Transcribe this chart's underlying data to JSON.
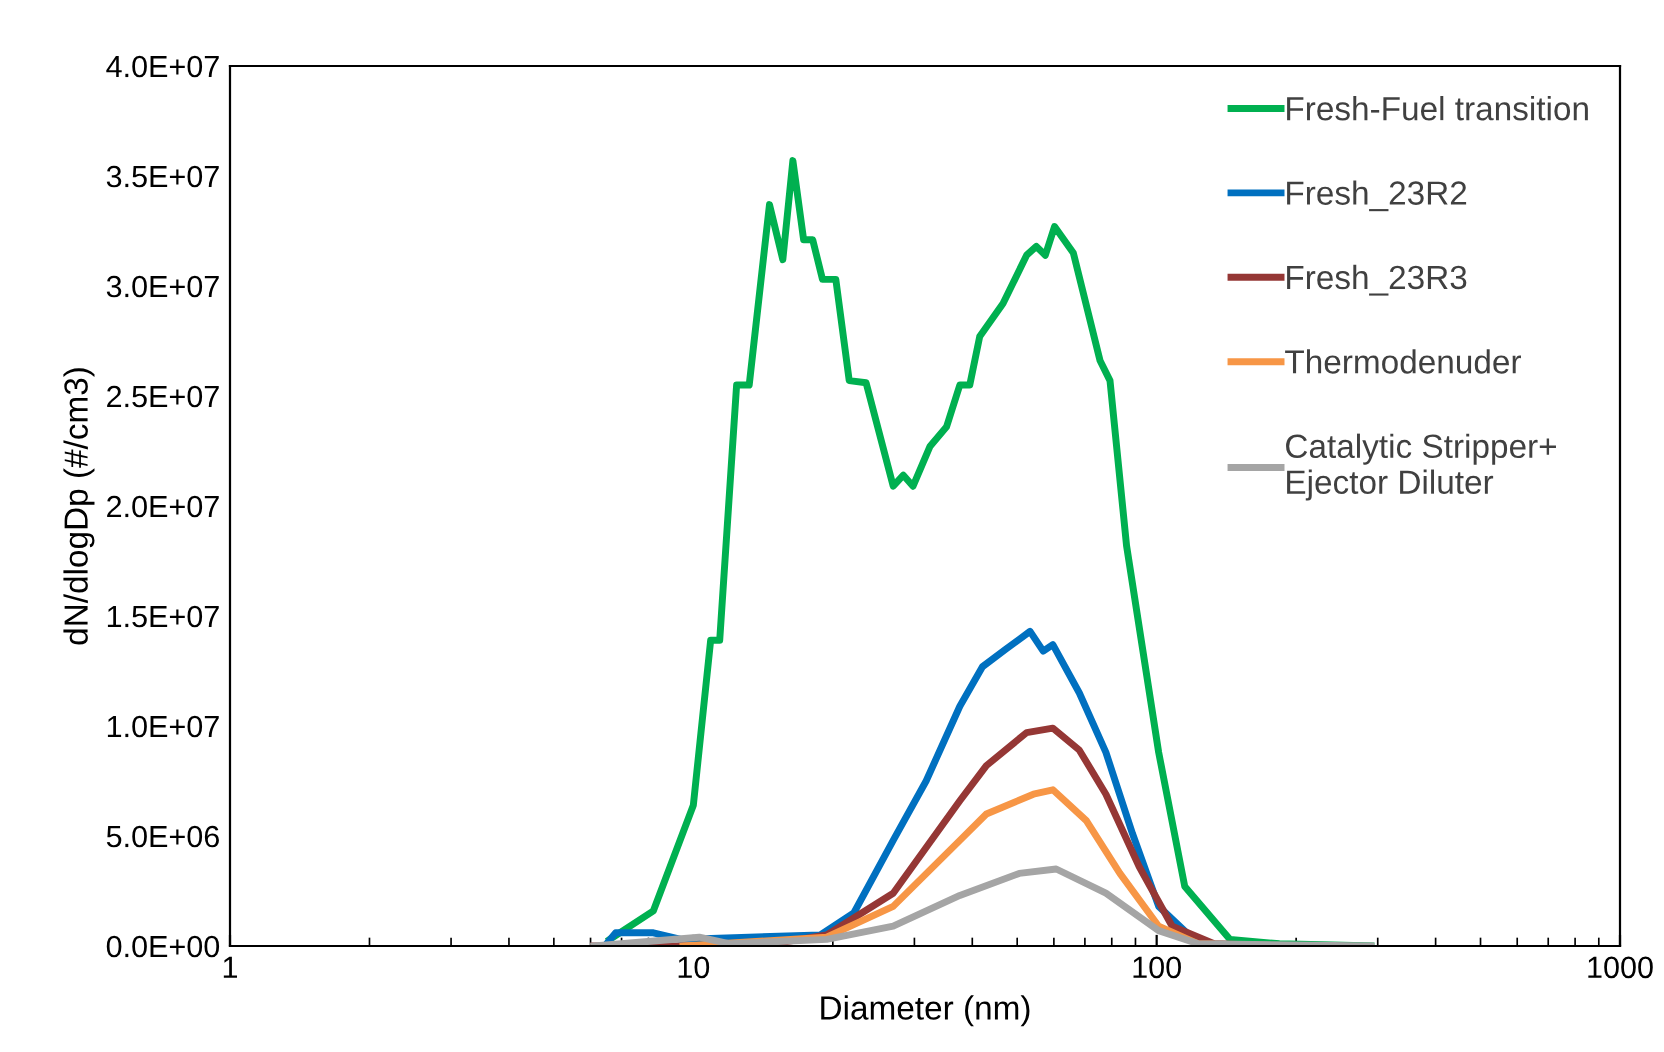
{
  "chart_data": {
    "type": "line",
    "xlabel": "Diameter (nm)",
    "ylabel": "dN/dlogDp (#/cm3)",
    "log": "x",
    "grid": false,
    "legend": "top right",
    "marker": "none",
    "line_style": "solid",
    "xlim": [
      1,
      1000
    ],
    "xticks": [
      1,
      10,
      100,
      1000
    ],
    "ylim": [
      0,
      40000000
    ],
    "yticks": [
      {
        "value": 0,
        "label": "0.0E+00"
      },
      {
        "value": 5000000,
        "label": "5.0E+06"
      },
      {
        "value": 10000000,
        "label": "1.0E+07"
      },
      {
        "value": 15000000,
        "label": "1.5E+07"
      },
      {
        "value": 20000000,
        "label": "2.0E+07"
      },
      {
        "value": 25000000,
        "label": "2.5E+07"
      },
      {
        "value": 30000000,
        "label": "3.0E+07"
      },
      {
        "value": 35000000,
        "label": "3.5E+07"
      },
      {
        "value": 40000000,
        "label": "4.0E+07"
      }
    ],
    "series": [
      {
        "name": "Fresh-Fuel transition",
        "color": "#00b050",
        "x": [
          6.6,
          8.2,
          10,
          10.9,
          11.4,
          12.4,
          13.2,
          14.6,
          15.6,
          16.4,
          17.3,
          18.1,
          19.0,
          20.3,
          21.7,
          23.6,
          27.0,
          28.4,
          29.8,
          32.4,
          35.2,
          37.6,
          39.5,
          41.5,
          46.6,
          52.4,
          55.0,
          57.5,
          60.2,
          66.1,
          75.5,
          79.3,
          86.1,
          101,
          115,
          144,
          184,
          290
        ],
        "values": [
          300000,
          1600000,
          6400000,
          13900000,
          13900000,
          25500000,
          25500000,
          33700000,
          31200000,
          35700000,
          32100000,
          32100000,
          30300000,
          30300000,
          25700000,
          25600000,
          20900000,
          21400000,
          20900000,
          22700000,
          23600000,
          25500000,
          25500000,
          27700000,
          29200000,
          31400000,
          31800000,
          31400000,
          32700000,
          31500000,
          26600000,
          25700000,
          18200000,
          8800000,
          2700000,
          300000,
          100000,
          0
        ]
      },
      {
        "name": "Fresh_23R2",
        "color": "#0070c0",
        "x": [
          6.5,
          6.8,
          8.2,
          9.4,
          18.8,
          22.2,
          27,
          31.8,
          37.6,
          42.1,
          47.3,
          53.3,
          56.9,
          59.7,
          68.1,
          77.7,
          88.7,
          101,
          123,
          200
        ],
        "values": [
          100000,
          600000,
          600000,
          300000,
          500000,
          1500000,
          4800000,
          7500000,
          10900000,
          12700000,
          13500000,
          14300000,
          13400000,
          13700000,
          11500000,
          8800000,
          5100000,
          1800000,
          100000,
          0
        ]
      },
      {
        "name": "Fresh_23R3",
        "color": "#953735",
        "x": [
          6.1,
          13.9,
          19.4,
          27,
          37.6,
          42.9,
          52.4,
          59.7,
          68.1,
          77.7,
          91.7,
          108,
          133,
          200
        ],
        "values": [
          0,
          0,
          500000,
          2400000,
          6600000,
          8200000,
          9700000,
          9900000,
          8900000,
          6900000,
          3600000,
          900000,
          100000,
          0
        ]
      },
      {
        "name": "Thermodenuder",
        "color": "#f79646",
        "x": [
          9.5,
          19.4,
          27,
          37.6,
          42.9,
          54.2,
          59.7,
          70.5,
          83.3,
          101,
          123,
          200
        ],
        "values": [
          0,
          400000,
          1800000,
          4800000,
          6000000,
          6900000,
          7100000,
          5700000,
          3300000,
          900000,
          100000,
          0
        ]
      },
      {
        "name": "Catalytic Stripper+\nEjector Diluter",
        "color": "#a5a5a5",
        "x": [
          6.1,
          10.3,
          12,
          19.4,
          27,
          37.6,
          50.5,
          60.7,
          77.7,
          101,
          123,
          290
        ],
        "values": [
          0,
          400000,
          100000,
          300000,
          900000,
          2300000,
          3300000,
          3500000,
          2400000,
          700000,
          100000,
          0
        ]
      }
    ]
  }
}
